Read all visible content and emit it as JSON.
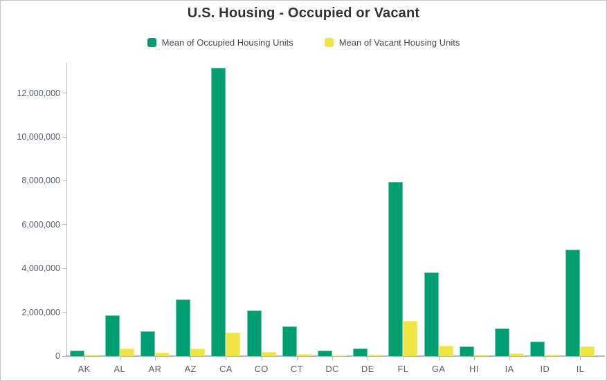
{
  "title": "U.S. Housing - Occupied or Vacant",
  "chart_data": {
    "type": "bar",
    "title": "U.S. Housing - Occupied or Vacant",
    "categories": [
      "AK",
      "AL",
      "AR",
      "AZ",
      "CA",
      "CO",
      "CT",
      "DC",
      "DE",
      "FL",
      "GA",
      "HI",
      "IA",
      "ID",
      "IL"
    ],
    "series": [
      {
        "name": "Mean of Occupied Housing Units",
        "color": "#009E73",
        "values": [
          255000,
          1860000,
          1130000,
          2600000,
          13160000,
          2090000,
          1360000,
          255000,
          340000,
          7940000,
          3810000,
          432000,
          1250000,
          650000,
          4860000
        ]
      },
      {
        "name": "Mean of Vacant Housing Units",
        "color": "#F0E442",
        "values": [
          70000,
          340000,
          150000,
          355000,
          1070000,
          200000,
          95000,
          40000,
          73000,
          1600000,
          460000,
          75000,
          140000,
          50000,
          430000
        ]
      }
    ],
    "xlabel": "",
    "ylabel": "",
    "ylim": [
      0,
      13380000
    ],
    "yticks": [
      {
        "value": 0,
        "label": "0"
      },
      {
        "value": 2000000,
        "label": "2,000,000"
      },
      {
        "value": 4000000,
        "label": "4,000,000"
      },
      {
        "value": 6000000,
        "label": "6,000,000"
      },
      {
        "value": 8000000,
        "label": "8,000,000"
      },
      {
        "value": 10000000,
        "label": "10,000,000"
      },
      {
        "value": 12000000,
        "label": "12,000,000"
      }
    ],
    "grid": false,
    "legend_position": "top-center"
  }
}
